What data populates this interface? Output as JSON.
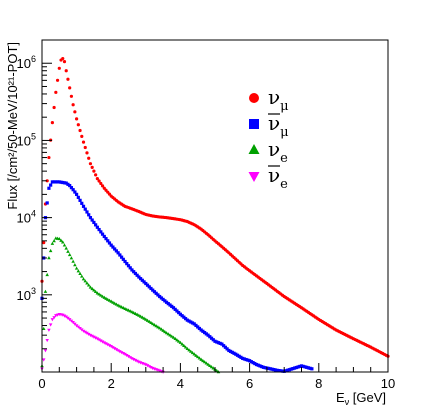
{
  "chart_data": {
    "type": "scatter",
    "title": "",
    "xlabel": "E",
    "xlabel_sub": "ν",
    "xlabel_unit": " [GeV]",
    "ylabel": "Flux [/cm²/50-MeV/10²¹-POT]",
    "xlim": [
      0,
      10
    ],
    "ylim": [
      100,
      2000000
    ],
    "y_scale": "log",
    "grid": false,
    "legend_position": "right",
    "x_ticks": [
      0,
      2,
      4,
      6,
      8,
      10
    ],
    "y_ticks": [
      {
        "value": 1000,
        "mantissa": "10",
        "exp": "3"
      },
      {
        "value": 10000,
        "mantissa": "10",
        "exp": "4"
      },
      {
        "value": 100000,
        "mantissa": "10",
        "exp": "5"
      },
      {
        "value": 1000000,
        "mantissa": "10",
        "exp": "6"
      }
    ],
    "series": [
      {
        "name": "ν",
        "name_sub": "μ",
        "bar": false,
        "color": "#ff0000",
        "marker": "circle",
        "points": [
          [
            0.0,
            1500
          ],
          [
            0.1,
            15000
          ],
          [
            0.2,
            60000
          ],
          [
            0.3,
            170000
          ],
          [
            0.4,
            420000
          ],
          [
            0.5,
            860000
          ],
          [
            0.55,
            1100000
          ],
          [
            0.6,
            1150000
          ],
          [
            0.65,
            1050000
          ],
          [
            0.7,
            800000
          ],
          [
            0.8,
            480000
          ],
          [
            0.9,
            290000
          ],
          [
            1.0,
            190000
          ],
          [
            1.2,
            95000
          ],
          [
            1.4,
            50000
          ],
          [
            1.6,
            32000
          ],
          [
            1.8,
            24000
          ],
          [
            2.0,
            19000
          ],
          [
            2.2,
            16000
          ],
          [
            2.4,
            14000
          ],
          [
            2.6,
            13000
          ],
          [
            2.8,
            12000
          ],
          [
            3.0,
            11000
          ],
          [
            3.2,
            10500
          ],
          [
            3.4,
            10200
          ],
          [
            3.6,
            10000
          ],
          [
            3.8,
            9700
          ],
          [
            4.0,
            9400
          ],
          [
            4.2,
            8900
          ],
          [
            4.4,
            8100
          ],
          [
            4.6,
            7100
          ],
          [
            4.8,
            6000
          ],
          [
            5.0,
            5000
          ],
          [
            5.2,
            4200
          ],
          [
            5.4,
            3500
          ],
          [
            5.6,
            2900
          ],
          [
            5.8,
            2400
          ],
          [
            6.0,
            2050
          ],
          [
            6.5,
            1400
          ],
          [
            7.0,
            950
          ],
          [
            7.5,
            680
          ],
          [
            8.0,
            480
          ],
          [
            8.5,
            350
          ],
          [
            9.0,
            270
          ],
          [
            9.5,
            210
          ],
          [
            10.0,
            160
          ]
        ]
      },
      {
        "name": "ν",
        "name_sub": "μ",
        "bar": true,
        "color": "#0000ff",
        "marker": "square",
        "points": [
          [
            0.0,
            900
          ],
          [
            0.1,
            10000
          ],
          [
            0.2,
            24000
          ],
          [
            0.3,
            29000
          ],
          [
            0.4,
            29000
          ],
          [
            0.5,
            29000
          ],
          [
            0.6,
            28500
          ],
          [
            0.7,
            28000
          ],
          [
            0.8,
            26000
          ],
          [
            0.9,
            23000
          ],
          [
            1.0,
            20000
          ],
          [
            1.2,
            14000
          ],
          [
            1.4,
            10000
          ],
          [
            1.6,
            7500
          ],
          [
            1.8,
            5700
          ],
          [
            2.0,
            4400
          ],
          [
            2.2,
            3500
          ],
          [
            2.4,
            2700
          ],
          [
            2.6,
            2100
          ],
          [
            2.8,
            1700
          ],
          [
            3.0,
            1400
          ],
          [
            3.2,
            1150
          ],
          [
            3.4,
            950
          ],
          [
            3.6,
            800
          ],
          [
            3.8,
            680
          ],
          [
            4.0,
            560
          ],
          [
            4.2,
            470
          ],
          [
            4.4,
            420
          ],
          [
            4.6,
            350
          ],
          [
            4.8,
            300
          ],
          [
            5.0,
            250
          ],
          [
            5.2,
            230
          ],
          [
            5.4,
            190
          ],
          [
            5.6,
            170
          ],
          [
            5.8,
            150
          ],
          [
            6.0,
            140
          ],
          [
            6.2,
            125
          ],
          [
            6.4,
            115
          ],
          [
            6.6,
            110
          ],
          [
            6.8,
            105
          ],
          [
            7.0,
            102
          ],
          [
            7.5,
            120
          ],
          [
            7.8,
            110
          ]
        ]
      },
      {
        "name": "ν",
        "name_sub": "e",
        "bar": false,
        "color": "#00a000",
        "marker": "triangle-up",
        "points": [
          [
            0.0,
            120
          ],
          [
            0.1,
            1100
          ],
          [
            0.2,
            3000
          ],
          [
            0.3,
            4600
          ],
          [
            0.4,
            5400
          ],
          [
            0.5,
            5300
          ],
          [
            0.6,
            4800
          ],
          [
            0.7,
            4000
          ],
          [
            0.8,
            3300
          ],
          [
            0.9,
            2700
          ],
          [
            1.0,
            2200
          ],
          [
            1.2,
            1600
          ],
          [
            1.4,
            1250
          ],
          [
            1.6,
            1050
          ],
          [
            1.8,
            920
          ],
          [
            2.0,
            820
          ],
          [
            2.2,
            730
          ],
          [
            2.4,
            660
          ],
          [
            2.6,
            600
          ],
          [
            2.8,
            540
          ],
          [
            3.0,
            480
          ],
          [
            3.2,
            420
          ],
          [
            3.4,
            370
          ],
          [
            3.6,
            320
          ],
          [
            3.8,
            280
          ],
          [
            4.0,
            240
          ],
          [
            4.2,
            200
          ],
          [
            4.4,
            170
          ],
          [
            4.6,
            145
          ],
          [
            4.8,
            125
          ],
          [
            5.0,
            108
          ],
          [
            5.1,
            100
          ]
        ]
      },
      {
        "name": "ν",
        "name_sub": "e",
        "bar": true,
        "color": "#ff00ff",
        "marker": "triangle-down",
        "points": [
          [
            0.0,
            110
          ],
          [
            0.1,
            190
          ],
          [
            0.2,
            350
          ],
          [
            0.3,
            480
          ],
          [
            0.4,
            540
          ],
          [
            0.5,
            560
          ],
          [
            0.6,
            550
          ],
          [
            0.7,
            520
          ],
          [
            0.8,
            480
          ],
          [
            0.9,
            440
          ],
          [
            1.0,
            400
          ],
          [
            1.2,
            340
          ],
          [
            1.4,
            300
          ],
          [
            1.6,
            270
          ],
          [
            1.8,
            240
          ],
          [
            2.0,
            215
          ],
          [
            2.2,
            190
          ],
          [
            2.4,
            170
          ],
          [
            2.6,
            150
          ],
          [
            2.8,
            135
          ],
          [
            3.0,
            125
          ],
          [
            3.2,
            112
          ],
          [
            3.4,
            104
          ],
          [
            3.5,
            100
          ]
        ]
      }
    ]
  }
}
